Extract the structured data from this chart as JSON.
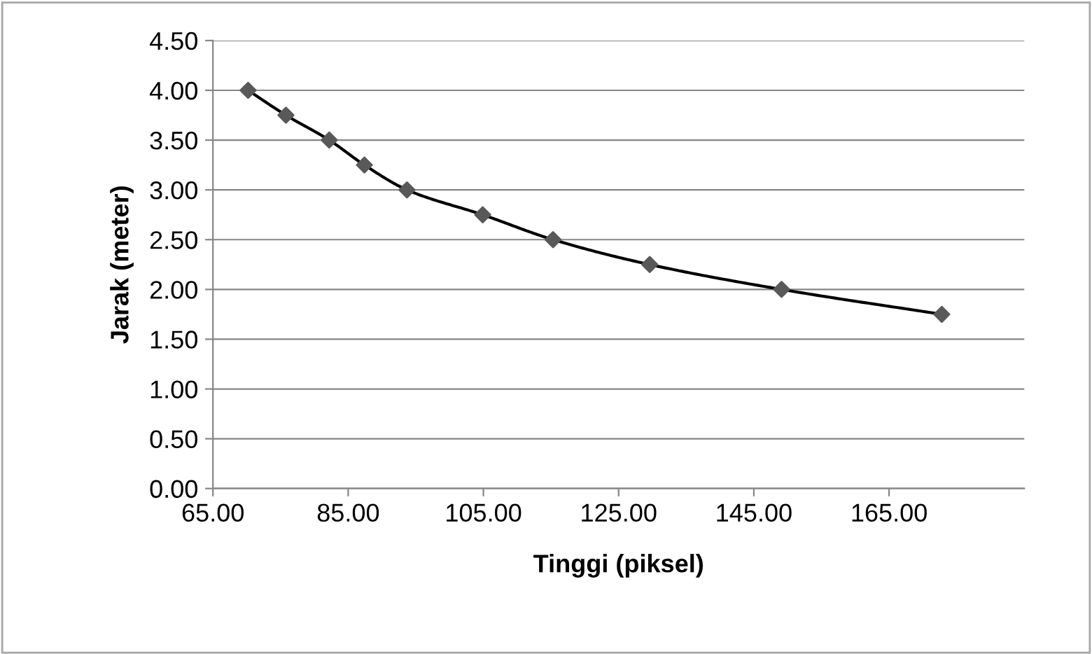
{
  "chart_data": {
    "type": "scatter",
    "xlabel": "Tinggi (piksel)",
    "ylabel": "Jarak (meter)",
    "series": [
      {
        "color": "#595959",
        "marker": "diamond",
        "x": [
          70.2,
          75.8,
          82.2,
          87.4,
          93.7,
          104.9,
          115.3,
          129.6,
          149.1,
          172.8
        ],
        "values": [
          4.0,
          3.75,
          3.5,
          3.25,
          3.0,
          2.75,
          2.5,
          2.25,
          2.0,
          1.75
        ]
      },
      {
        "type": "line",
        "color": "#000000",
        "marker": "none",
        "line_style": "solid",
        "x": [
          70.2,
          75.8,
          82.2,
          87.4,
          93.7,
          104.9,
          115.3,
          129.6,
          149.1,
          172.8
        ],
        "values": [
          4.0,
          3.75,
          3.5,
          3.25,
          3.0,
          2.75,
          2.5,
          2.25,
          2.0,
          1.75
        ]
      }
    ],
    "xlim": [
      65,
      185
    ],
    "xticks": [
      {
        "value": 65,
        "label": "65.00"
      },
      {
        "value": 85,
        "label": "85.00"
      },
      {
        "value": 105,
        "label": "105.00"
      },
      {
        "value": 125,
        "label": "125.00"
      },
      {
        "value": 145,
        "label": "145.00"
      },
      {
        "value": 165,
        "label": "165.00"
      }
    ],
    "ylim": [
      0,
      4.5
    ],
    "yticks": [
      {
        "value": 0,
        "label": "0.00"
      },
      {
        "value": 0.5,
        "label": "0.50"
      },
      {
        "value": 1,
        "label": "1.00"
      },
      {
        "value": 1.5,
        "label": "1.50"
      },
      {
        "value": 2,
        "label": "2.00"
      },
      {
        "value": 2.5,
        "label": "2.50"
      },
      {
        "value": 3,
        "label": "3.00"
      },
      {
        "value": 3.5,
        "label": "3.50"
      },
      {
        "value": 4,
        "label": "4.00"
      },
      {
        "value": 4.5,
        "label": "4.50"
      }
    ],
    "grid": "y",
    "legend": false
  }
}
